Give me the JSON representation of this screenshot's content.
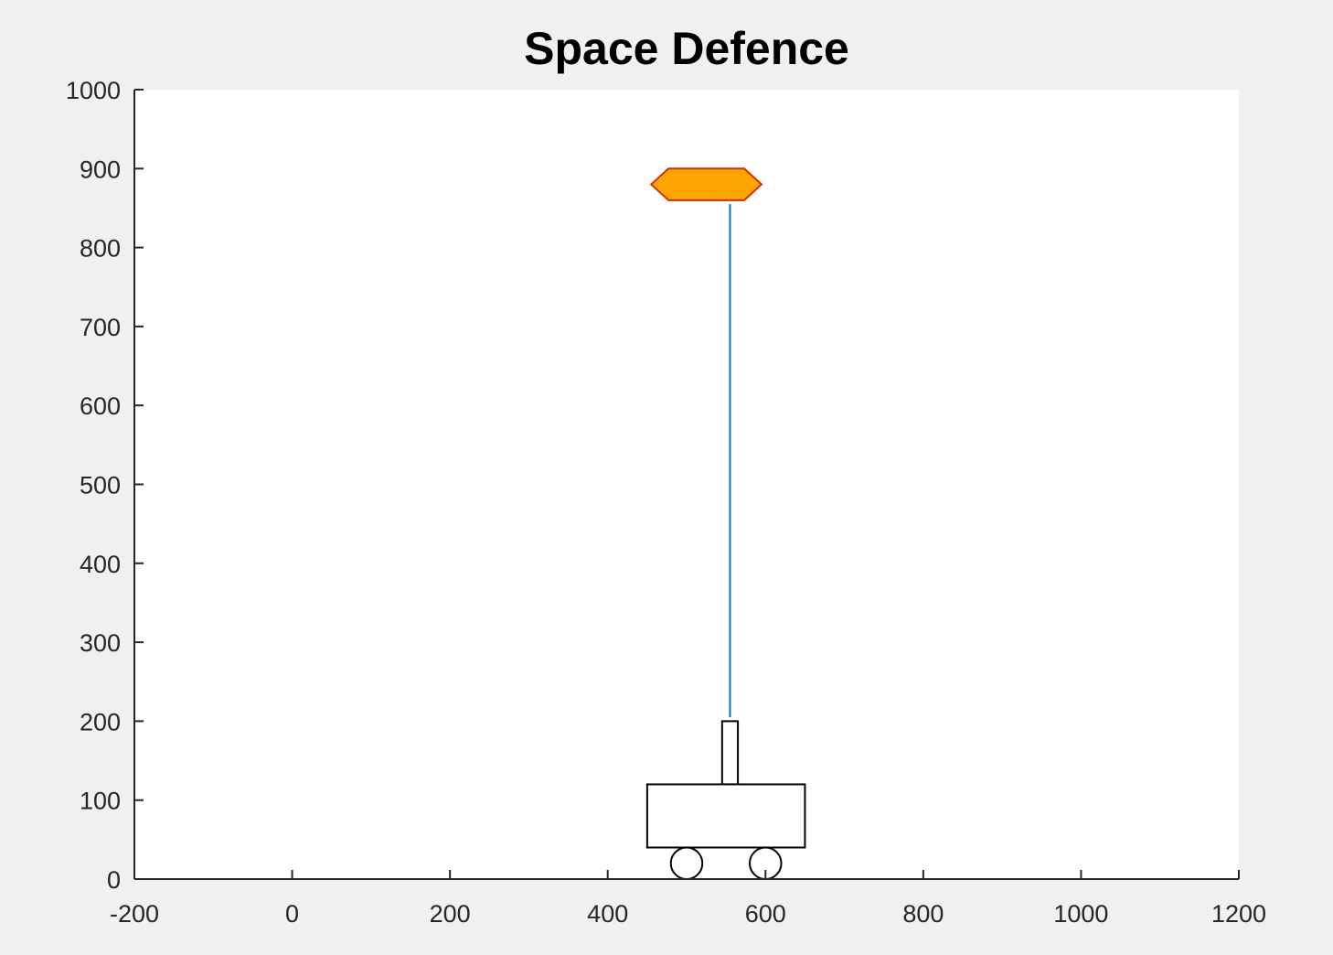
{
  "figure": {
    "title": "Space Defence",
    "background_color": "#f0f0f0",
    "axes_color": "#ffffff",
    "axis_line_color": "#262626"
  },
  "chart_data": {
    "type": "game-scene",
    "title": "Space Defence",
    "xlabel": "",
    "ylabel": "",
    "xlim": [
      -200,
      1200
    ],
    "ylim": [
      0,
      1000
    ],
    "grid": false,
    "x_ticks": [
      -200,
      0,
      200,
      400,
      600,
      800,
      1000,
      1200
    ],
    "y_ticks": [
      0,
      100,
      200,
      300,
      400,
      500,
      600,
      700,
      800,
      900,
      1000
    ],
    "x_tick_labels": [
      "-200",
      "0",
      "200",
      "400",
      "600",
      "800",
      "1000",
      "1200"
    ],
    "y_tick_labels": [
      "0",
      "100",
      "200",
      "300",
      "400",
      "500",
      "600",
      "700",
      "800",
      "900",
      "1000"
    ],
    "objects": {
      "enemy_ship": {
        "polygon": [
          [
            455,
            880
          ],
          [
            477,
            900
          ],
          [
            573,
            900
          ],
          [
            595,
            880
          ],
          [
            573,
            860
          ],
          [
            477,
            860
          ]
        ],
        "fill": "#ffa500",
        "stroke": "#d62e00"
      },
      "laser_beam": {
        "x": 555,
        "y_start": 205,
        "y_end": 855,
        "color": "#0072bd"
      },
      "cannon_barrel": {
        "x": [
          545,
          565
        ],
        "y": [
          120,
          200
        ],
        "stroke": "#000000"
      },
      "tank_body": {
        "x": [
          450,
          650
        ],
        "y": [
          40,
          120
        ],
        "stroke": "#000000"
      },
      "wheels": [
        {
          "cx": 500,
          "cy": 20,
          "r": 20
        },
        {
          "cx": 600,
          "cy": 20,
          "r": 20
        }
      ]
    }
  }
}
